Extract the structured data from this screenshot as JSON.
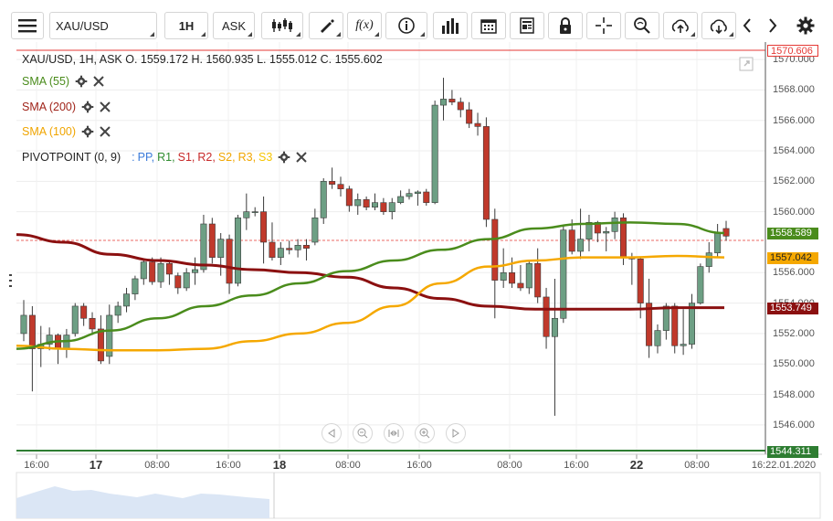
{
  "toolbar": {
    "symbol": "XAU/USD",
    "timeframe": "1H",
    "price_type": "ASK",
    "icons": [
      "menu-icon",
      "candles-icon",
      "draw-icon",
      "function-icon",
      "info-icon",
      "bar-chart-icon",
      "calendar-icon",
      "news-icon",
      "lock-icon",
      "crosshair-icon",
      "zoom-icon",
      "upload-icon",
      "download-icon",
      "chevron-left-icon",
      "chevron-right-icon",
      "gear-icon"
    ]
  },
  "legend": {
    "ohlc": "XAU/USD, 1H, ASK    O. 1559.172 H. 1560.935 L. 1555.012 C. 1555.602",
    "sma55": "SMA (55)",
    "sma200": "SMA (200)",
    "sma100": "SMA (100)",
    "pivot_label": "PIVOTPOINT (0, 9)",
    "pivot_colon": ":",
    "pivot_items": [
      {
        "text": "PP",
        "color": "#3a7ad9"
      },
      {
        "text": "R1",
        "color": "#2e8b2e"
      },
      {
        "text": "S1",
        "color": "#c62828"
      },
      {
        "text": "R2",
        "color": "#c62828"
      },
      {
        "text": "S2",
        "color": "#f0a500"
      },
      {
        "text": "R3",
        "color": "#f0a500"
      },
      {
        "text": "S3",
        "color": "#f5c400"
      }
    ]
  },
  "price_tags": {
    "top": "1570.606",
    "sma55": "1558.589",
    "sma100": "1557.042",
    "sma200": "1553.749",
    "bottom": "1544.311"
  },
  "y_ticks": [
    "1570.000",
    "1568.000",
    "1566.000",
    "1564.000",
    "1562.000",
    "1560.000",
    "1556.000",
    "1554.000",
    "1552.000",
    "1550.000",
    "1548.000",
    "1546.000"
  ],
  "x_ticks": [
    {
      "label": "16:00",
      "bold": false
    },
    {
      "label": "17",
      "bold": true
    },
    {
      "label": "08:00",
      "bold": false
    },
    {
      "label": "16:00",
      "bold": false
    },
    {
      "label": "18",
      "bold": true
    },
    {
      "label": "08:00",
      "bold": false
    },
    {
      "label": "16:00",
      "bold": false
    },
    {
      "label": "08:00",
      "bold": false
    },
    {
      "label": "16:00",
      "bold": false
    },
    {
      "label": "22",
      "bold": true
    },
    {
      "label": "08:00",
      "bold": false
    },
    {
      "label": "16:22.01.2020",
      "bold": false
    }
  ],
  "colors": {
    "up": "#6d9f84",
    "down": "#c0392b",
    "sma55": "#4a8c1c",
    "sma100": "#f5a800",
    "sma200": "#8b1010"
  },
  "chart_data": {
    "type": "candlestick",
    "y_range": [
      1544.311,
      1570.606
    ],
    "ohlc": [
      [
        1552,
        1554.2,
        1551.5,
        1553.2
      ],
      [
        1553.2,
        1553.8,
        1548.2,
        1551.0
      ],
      [
        1551,
        1552.5,
        1549.8,
        1551.3
      ],
      [
        1551.3,
        1552.4,
        1550.9,
        1551.9
      ],
      [
        1551.9,
        1552.0,
        1550.0,
        1551.0
      ],
      [
        1551.0,
        1552.3,
        1550.4,
        1551.9
      ],
      [
        1552.0,
        1554.0,
        1551.8,
        1553.8
      ],
      [
        1553.8,
        1554.0,
        1552.5,
        1553.0
      ],
      [
        1553.0,
        1553.4,
        1551.9,
        1552.3
      ],
      [
        1552.3,
        1553.2,
        1550.0,
        1550.2
      ],
      [
        1550.5,
        1553.9,
        1550.0,
        1553.2
      ],
      [
        1553.2,
        1554.1,
        1552.7,
        1553.8
      ],
      [
        1553.8,
        1555.0,
        1553.4,
        1554.6
      ],
      [
        1554.6,
        1555.8,
        1554.2,
        1555.6
      ],
      [
        1555.6,
        1556.9,
        1555.2,
        1556.7
      ],
      [
        1556.7,
        1557.0,
        1555.2,
        1555.4
      ],
      [
        1555.4,
        1557.0,
        1555.0,
        1556.6
      ],
      [
        1556.6,
        1556.8,
        1555.2,
        1555.9
      ],
      [
        1555.8,
        1556.0,
        1554.6,
        1555.0
      ],
      [
        1555.0,
        1556.3,
        1554.8,
        1556.0
      ],
      [
        1556.0,
        1557.0,
        1555.2,
        1556.2
      ],
      [
        1556.2,
        1559.8,
        1556.0,
        1559.2
      ],
      [
        1559.2,
        1559.6,
        1556.6,
        1557.0
      ],
      [
        1557.0,
        1558.6,
        1555.8,
        1558.2
      ],
      [
        1558.2,
        1558.5,
        1554.6,
        1555.3
      ],
      [
        1555.3,
        1559.8,
        1555.1,
        1559.6
      ],
      [
        1559.6,
        1561.2,
        1558.8,
        1560.0
      ],
      [
        1560.0,
        1560.3,
        1559.7,
        1560.0
      ],
      [
        1560.0,
        1561.0,
        1556.6,
        1558.0
      ],
      [
        1558.0,
        1559.3,
        1556.8,
        1557.0
      ],
      [
        1557.0,
        1558.0,
        1556.5,
        1557.6
      ],
      [
        1557.6,
        1558.1,
        1557.2,
        1557.5
      ],
      [
        1557.5,
        1558.2,
        1557.0,
        1557.8
      ],
      [
        1557.8,
        1558.2,
        1556.8,
        1557.6
      ],
      [
        1558.0,
        1560.2,
        1557.8,
        1559.6
      ],
      [
        1559.6,
        1562.2,
        1559.2,
        1562.0
      ],
      [
        1562.0,
        1562.9,
        1561.5,
        1561.8
      ],
      [
        1561.8,
        1562.3,
        1561.0,
        1561.5
      ],
      [
        1561.5,
        1561.7,
        1560.0,
        1560.4
      ],
      [
        1560.4,
        1561.2,
        1559.8,
        1560.8
      ],
      [
        1560.8,
        1561.0,
        1560.1,
        1560.3
      ],
      [
        1560.3,
        1561.2,
        1560.1,
        1560.6
      ],
      [
        1560.6,
        1560.9,
        1559.8,
        1560.0
      ],
      [
        1560.0,
        1560.9,
        1559.5,
        1560.6
      ],
      [
        1560.6,
        1561.4,
        1560.5,
        1561.0
      ],
      [
        1561.0,
        1561.5,
        1560.8,
        1561.2
      ],
      [
        1561.2,
        1561.4,
        1560.4,
        1561.3
      ],
      [
        1561.3,
        1561.5,
        1560.4,
        1560.6
      ],
      [
        1560.6,
        1567.3,
        1560.5,
        1567.0
      ],
      [
        1567.0,
        1568.8,
        1566.0,
        1567.4
      ],
      [
        1567.4,
        1568.0,
        1567.0,
        1567.2
      ],
      [
        1567.2,
        1567.5,
        1566.2,
        1566.7
      ],
      [
        1566.7,
        1567.2,
        1565.5,
        1565.8
      ],
      [
        1565.8,
        1566.5,
        1565.0,
        1565.6
      ],
      [
        1565.6,
        1566.2,
        1559.0,
        1559.5
      ],
      [
        1559.5,
        1560.2,
        1553.0,
        1555.5
      ],
      [
        1555.5,
        1557.6,
        1555.0,
        1556.0
      ],
      [
        1556.0,
        1557.0,
        1555.0,
        1555.3
      ],
      [
        1555.3,
        1556.5,
        1554.8,
        1555.0
      ],
      [
        1555.0,
        1556.8,
        1554.6,
        1556.6
      ],
      [
        1556.6,
        1557.6,
        1554.0,
        1554.4
      ],
      [
        1554.4,
        1555.0,
        1551.0,
        1551.8
      ],
      [
        1551.8,
        1555.6,
        1546.6,
        1553.0
      ],
      [
        1553.0,
        1559.1,
        1552.7,
        1558.8
      ],
      [
        1558.8,
        1559.5,
        1557.2,
        1557.4
      ],
      [
        1557.4,
        1560.2,
        1556.9,
        1558.2
      ],
      [
        1558.2,
        1559.8,
        1557.4,
        1559.3
      ],
      [
        1559.3,
        1559.4,
        1558.0,
        1558.6
      ],
      [
        1558.6,
        1559.0,
        1557.4,
        1558.7
      ],
      [
        1558.7,
        1560.0,
        1558.2,
        1559.6
      ],
      [
        1559.6,
        1559.9,
        1556.5,
        1557.0
      ],
      [
        1557.0,
        1557.3,
        1555.2,
        1556.9
      ],
      [
        1556.9,
        1557.0,
        1553.0,
        1554.0
      ],
      [
        1554.0,
        1555.6,
        1550.4,
        1551.2
      ],
      [
        1551.2,
        1552.6,
        1550.7,
        1552.2
      ],
      [
        1552.2,
        1554.0,
        1551.6,
        1553.8
      ],
      [
        1553.8,
        1554.0,
        1550.7,
        1551.2
      ],
      [
        1551.2,
        1553.6,
        1550.6,
        1551.3
      ],
      [
        1551.3,
        1554.6,
        1551.0,
        1554.0
      ],
      [
        1554.0,
        1556.6,
        1553.9,
        1556.4
      ],
      [
        1556.4,
        1558.0,
        1556.0,
        1557.3
      ],
      [
        1557.3,
        1559.2,
        1557.0,
        1558.6
      ],
      [
        1558.9,
        1559.4,
        1558.1,
        1558.4
      ]
    ],
    "sma55": [
      1551.0,
      1551.5,
      1552.2,
      1553.0,
      1553.8,
      1554.5,
      1555.3,
      1556.1,
      1556.8,
      1557.5,
      1558.2,
      1558.9,
      1559.2,
      1559.3,
      1559.2,
      1558.6
    ],
    "sma100": [
      1551.2,
      1551.0,
      1550.9,
      1550.9,
      1551.0,
      1551.5,
      1552.0,
      1552.7,
      1553.8,
      1555.3,
      1556.4,
      1556.8,
      1557.0,
      1557.0,
      1557.1,
      1557.0
    ],
    "sma200": [
      1558.5,
      1558.0,
      1557.2,
      1556.8,
      1556.5,
      1556.2,
      1556.0,
      1555.7,
      1555.0,
      1554.3,
      1553.8,
      1553.6,
      1553.6,
      1553.6,
      1553.7,
      1553.7
    ]
  }
}
